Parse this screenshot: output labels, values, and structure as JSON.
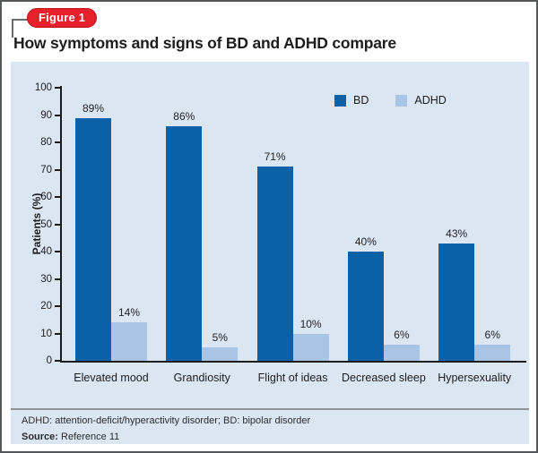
{
  "figure": {
    "badge_label": "Figure 1",
    "title": "How symptoms and signs of BD and ADHD compare"
  },
  "chart_data": {
    "type": "bar",
    "title": "How symptoms and signs of BD and ADHD compare",
    "categories": [
      "Elevated mood",
      "Grandiosity",
      "Flight of ideas",
      "Decreased sleep",
      "Hypersexuality"
    ],
    "series": [
      {
        "name": "BD",
        "color": "#0b61a7",
        "values": [
          89,
          86,
          71,
          40,
          43
        ]
      },
      {
        "name": "ADHD",
        "color": "#a9c4e4",
        "values": [
          14,
          5,
          10,
          6,
          6
        ]
      }
    ],
    "value_labels": [
      [
        "89%",
        "86%",
        "71%",
        "40%",
        "43%"
      ],
      [
        "14%",
        "5%",
        "10%",
        "6%",
        "6%"
      ]
    ],
    "xlabel": "",
    "ylabel": "Patients (%)",
    "ylim": [
      0,
      100
    ],
    "ytick_step": 10,
    "yticks": [
      0,
      10,
      20,
      30,
      40,
      50,
      60,
      70,
      80,
      90,
      100
    ],
    "grid": false,
    "legend_position": "top-right-inside",
    "plot_background": "#dbe6f3"
  },
  "footer": {
    "abbreviations": "ADHD: attention-deficit/hyperactivity disorder; BD: bipolar disorder",
    "source_label": "Source:",
    "source_text": " Reference 11"
  },
  "colors": {
    "badge_red": "#e7202e",
    "panel_blue": "#dbe6f3",
    "bd_blue": "#0b61a7",
    "adhd_blue": "#a9c4e4",
    "axis_black": "#1c1c1c"
  }
}
